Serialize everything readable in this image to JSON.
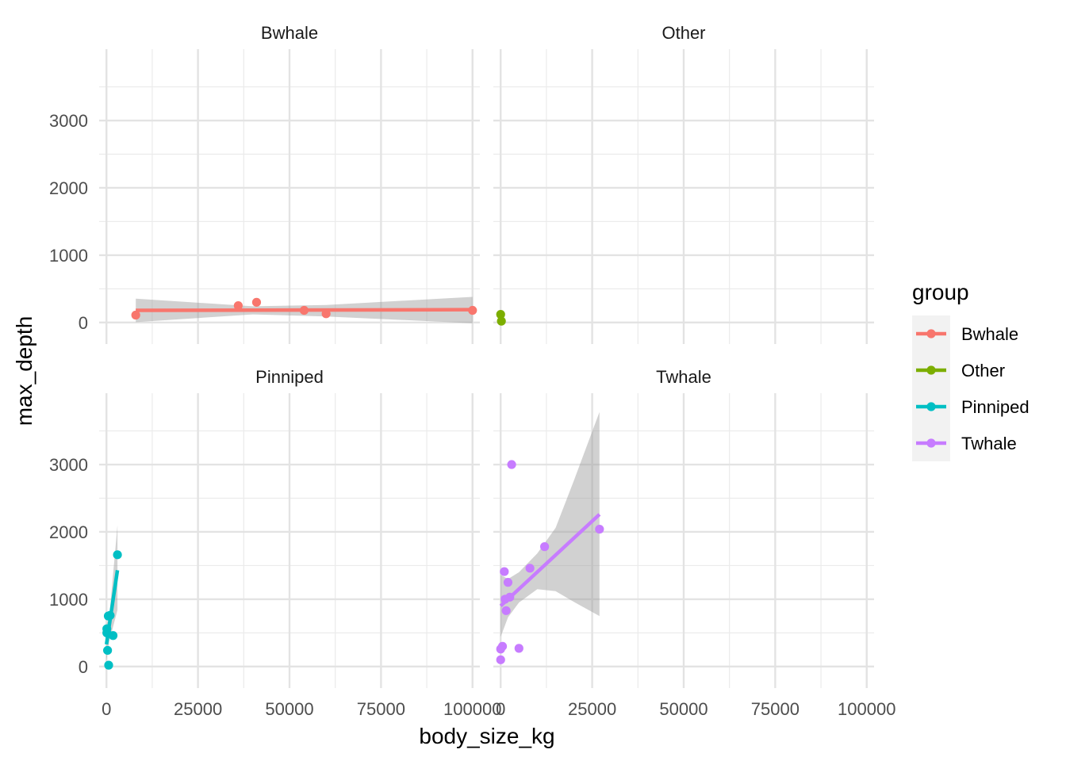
{
  "chart_data": {
    "type": "scatter",
    "facet_layout": "2x2",
    "xlabel": "body_size_kg",
    "ylabel": "max_depth",
    "xlim": [
      -2000,
      102000
    ],
    "ylim": [
      -320,
      4060
    ],
    "x_ticks": [
      0,
      25000,
      50000,
      75000,
      100000
    ],
    "x_tick_labels": [
      "0",
      "25000",
      "50000",
      "75000",
      "100000"
    ],
    "y_ticks": [
      0,
      1000,
      2000,
      3000
    ],
    "y_tick_labels": [
      "0",
      "1000",
      "2000",
      "3000"
    ],
    "grid": true,
    "trend": "linear fit with grey confidence band",
    "legend": {
      "title": "group",
      "position": "right",
      "entries": [
        {
          "label": "Bwhale",
          "color": "#F8766D"
        },
        {
          "label": "Other",
          "color": "#7CAE00"
        },
        {
          "label": "Pinniped",
          "color": "#00BFC4"
        },
        {
          "label": "Twhale",
          "color": "#C77CFF"
        }
      ]
    },
    "panels": [
      {
        "name": "Bwhale",
        "color": "#F8766D",
        "points": [
          [
            8000,
            110
          ],
          [
            36000,
            250
          ],
          [
            41000,
            300
          ],
          [
            54000,
            180
          ],
          [
            60000,
            130
          ],
          [
            100000,
            180
          ]
        ],
        "fit": {
          "x": [
            8000,
            100000
          ],
          "y": [
            180,
            190
          ]
        },
        "band": {
          "x": [
            8000,
            40000,
            60000,
            100000
          ],
          "lower": [
            5,
            120,
            90,
            -10
          ],
          "upper": [
            355,
            240,
            260,
            380
          ]
        }
      },
      {
        "name": "Other",
        "color": "#7CAE00",
        "points": [
          [
            0,
            120
          ],
          [
            200,
            20
          ]
        ],
        "fit": null,
        "band": null
      },
      {
        "name": "Pinniped",
        "color": "#00BFC4",
        "points": [
          [
            100,
            560
          ],
          [
            100,
            500
          ],
          [
            300,
            240
          ],
          [
            500,
            750
          ],
          [
            600,
            20
          ],
          [
            1000,
            760
          ],
          [
            1800,
            460
          ],
          [
            3000,
            1660
          ]
        ],
        "fit": {
          "x": [
            0,
            3000
          ],
          "y": [
            330,
            1430
          ]
        },
        "band": {
          "x": [
            0,
            800,
            3000
          ],
          "lower": [
            80,
            380,
            840
          ],
          "upper": [
            620,
            750,
            2100
          ]
        }
      },
      {
        "name": "Twhale",
        "color": "#C77CFF",
        "points": [
          [
            0,
            100
          ],
          [
            0,
            260
          ],
          [
            500,
            300
          ],
          [
            1000,
            1410
          ],
          [
            1200,
            1000
          ],
          [
            1500,
            830
          ],
          [
            2000,
            1250
          ],
          [
            2500,
            1030
          ],
          [
            3000,
            3000
          ],
          [
            5000,
            270
          ],
          [
            8000,
            1460
          ],
          [
            12000,
            1780
          ],
          [
            27000,
            2040
          ]
        ],
        "fit": {
          "x": [
            0,
            27000
          ],
          "y": [
            900,
            2260
          ]
        },
        "band": {
          "x": [
            0,
            2000,
            5000,
            10000,
            15000,
            20000,
            27000
          ],
          "lower": [
            440,
            730,
            950,
            1150,
            1120,
            960,
            750
          ],
          "upper": [
            1360,
            1300,
            1400,
            1680,
            2060,
            2760,
            3780
          ]
        }
      }
    ]
  }
}
